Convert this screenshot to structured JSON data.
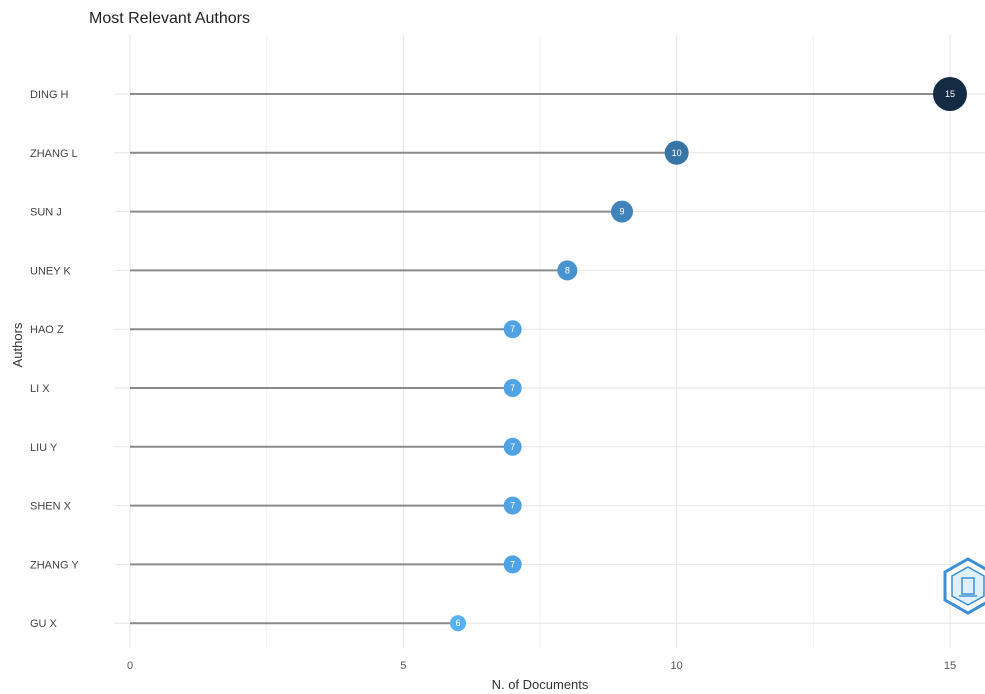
{
  "chart_data": {
    "type": "lollipop",
    "title": "Most Relevant Authors",
    "xlabel": "N. of Documents",
    "ylabel": "Authors",
    "xlim": [
      0,
      15
    ],
    "x_ticks": [
      0,
      5,
      10,
      15
    ],
    "grid": true,
    "categories": [
      "DING H",
      "ZHANG L",
      "SUN J",
      "UNEY K",
      "HAO Z",
      "LI X",
      "LIU Y",
      "SHEN X",
      "ZHANG Y",
      "GU X"
    ],
    "values": [
      15,
      10,
      9,
      8,
      7,
      7,
      7,
      7,
      7,
      6
    ],
    "colors": {
      "stem": "#8a8a8a",
      "grid_major": "#e6e6e6",
      "grid_minor": "#f2f2f2",
      "point_low": "#56b1f7",
      "point_high": "#132b43"
    }
  }
}
